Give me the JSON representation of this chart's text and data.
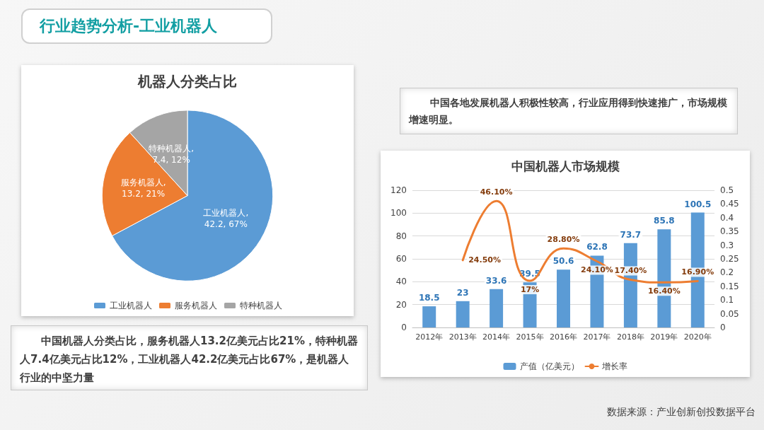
{
  "chart_data": [
    {
      "type": "other",
      "title": "行业趋势分析-工业机器人",
      "annotations": [
        "中国机器人分类占比，服务机器人13.2亿美元占比21%，特种机器人7.4亿美元占比12%，工业机器人42.2亿美元占比67%，是机器人行业的中坚力量",
        "中国各地发展机器人积极性较高，行业应用得到快速推广，市场规模增速明显。",
        "数据来源：产业创新创投数据平台"
      ]
    },
    {
      "type": "pie",
      "title": "机器人分类占比",
      "categories": [
        "工业机器人",
        "服务机器人",
        "特种机器人"
      ],
      "values": [
        42.2,
        13.2,
        7.4
      ],
      "colors": [
        "#5b9bd5",
        "#ed7d31",
        "#a5a5a5"
      ],
      "value_labels": [
        "工业机器人, 42.2, 67%",
        "服务机器人, 13.2, 21%",
        "特种机器人, 7.4, 12%"
      ],
      "legend": "bottom"
    },
    {
      "type": "bar",
      "title": "中国机器人市场规模",
      "categories": [
        "2012年",
        "2013年",
        "2014年",
        "2015年",
        "2016年",
        "2017年",
        "2018年",
        "2019年",
        "2020年"
      ],
      "series": [
        {
          "name": "产值（亿美元）",
          "type": "bar",
          "color": "#5b9bd5",
          "values": [
            18.5,
            23,
            33.6,
            39.5,
            50.6,
            62.8,
            73.7,
            85.8,
            100.5
          ]
        },
        {
          "name": "增长率",
          "type": "line",
          "axis": "y2",
          "color": "#ed7d31",
          "values": [
            null,
            0.245,
            0.461,
            0.17,
            0.288,
            0.241,
            0.174,
            0.164,
            0.169
          ],
          "value_labels": [
            null,
            "24.50%",
            "46.10%",
            "17%",
            "28.80%",
            "24.10%",
            "17.40%",
            "16.40%",
            "16.90%"
          ]
        }
      ],
      "data_labels": true,
      "ylim": [
        0,
        120
      ],
      "yticks": [
        0,
        20,
        40,
        60,
        80,
        100,
        120
      ],
      "y2lim": [
        0,
        0.5
      ],
      "y2ticks": [
        0,
        0.05,
        0.1,
        0.15,
        0.2,
        0.25,
        0.3,
        0.35,
        0.4,
        0.45,
        0.5
      ],
      "grid": "y",
      "legend": "bottom",
      "marker": "none",
      "line_style": "solid"
    }
  ]
}
